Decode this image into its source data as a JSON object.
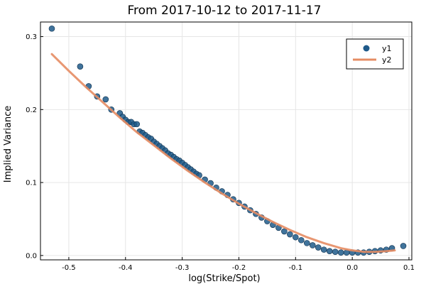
{
  "chart_data": {
    "type": "scatter",
    "title": "From 2017-10-12 to 2017-11-17",
    "xlabel": "log(Strike/Spot)",
    "ylabel": "Implied Variance",
    "xlim": [
      -0.55,
      0.105
    ],
    "ylim": [
      -0.006,
      0.32
    ],
    "xticks": [
      -0.5,
      -0.4,
      -0.3,
      -0.2,
      -0.1,
      0.0,
      0.1
    ],
    "xtick_labels": [
      "-0.5",
      "-0.4",
      "-0.3",
      "-0.2",
      "-0.1",
      "0.0",
      "0.1"
    ],
    "yticks": [
      0.0,
      0.1,
      0.2,
      0.3
    ],
    "ytick_labels": [
      "0.0",
      "0.1",
      "0.2",
      "0.3"
    ],
    "grid": true,
    "legend_position": "top-right",
    "series": [
      {
        "name": "y1",
        "kind": "scatter",
        "color": "#1f5a8a",
        "x": [
          -0.53,
          -0.48,
          -0.465,
          -0.45,
          -0.435,
          -0.425,
          -0.41,
          -0.405,
          -0.4,
          -0.395,
          -0.39,
          -0.385,
          -0.38,
          -0.375,
          -0.37,
          -0.365,
          -0.36,
          -0.355,
          -0.35,
          -0.345,
          -0.34,
          -0.335,
          -0.33,
          -0.325,
          -0.32,
          -0.315,
          -0.31,
          -0.305,
          -0.3,
          -0.295,
          -0.29,
          -0.285,
          -0.28,
          -0.275,
          -0.27,
          -0.26,
          -0.25,
          -0.24,
          -0.23,
          -0.22,
          -0.21,
          -0.2,
          -0.19,
          -0.18,
          -0.17,
          -0.16,
          -0.15,
          -0.14,
          -0.13,
          -0.12,
          -0.11,
          -0.1,
          -0.09,
          -0.08,
          -0.07,
          -0.06,
          -0.05,
          -0.04,
          -0.03,
          -0.02,
          -0.01,
          0.0,
          0.01,
          0.02,
          0.03,
          0.04,
          0.05,
          0.06,
          0.07,
          0.09
        ],
        "y": [
          0.311,
          0.259,
          0.232,
          0.218,
          0.214,
          0.2,
          0.195,
          0.19,
          0.186,
          0.183,
          0.183,
          0.18,
          0.18,
          0.17,
          0.168,
          0.165,
          0.162,
          0.16,
          0.156,
          0.153,
          0.15,
          0.147,
          0.144,
          0.14,
          0.138,
          0.135,
          0.132,
          0.13,
          0.127,
          0.124,
          0.121,
          0.118,
          0.115,
          0.112,
          0.11,
          0.104,
          0.099,
          0.093,
          0.088,
          0.083,
          0.077,
          0.072,
          0.067,
          0.062,
          0.057,
          0.052,
          0.047,
          0.042,
          0.038,
          0.033,
          0.029,
          0.025,
          0.021,
          0.017,
          0.014,
          0.011,
          0.008,
          0.006,
          0.005,
          0.004,
          0.004,
          0.004,
          0.004,
          0.004,
          0.005,
          0.006,
          0.007,
          0.008,
          0.01,
          0.013
        ]
      },
      {
        "name": "y2",
        "kind": "line",
        "color": "#e58c63",
        "x": [
          -0.53,
          -0.5,
          -0.47,
          -0.44,
          -0.41,
          -0.38,
          -0.35,
          -0.32,
          -0.29,
          -0.26,
          -0.23,
          -0.2,
          -0.17,
          -0.14,
          -0.11,
          -0.08,
          -0.05,
          -0.02,
          0.0,
          0.02,
          0.04,
          0.06,
          0.075
        ],
        "y": [
          0.276,
          0.253,
          0.231,
          0.21,
          0.189,
          0.169,
          0.151,
          0.133,
          0.116,
          0.1,
          0.085,
          0.071,
          0.058,
          0.046,
          0.035,
          0.025,
          0.017,
          0.01,
          0.007,
          0.005,
          0.005,
          0.006,
          0.007
        ]
      }
    ]
  }
}
